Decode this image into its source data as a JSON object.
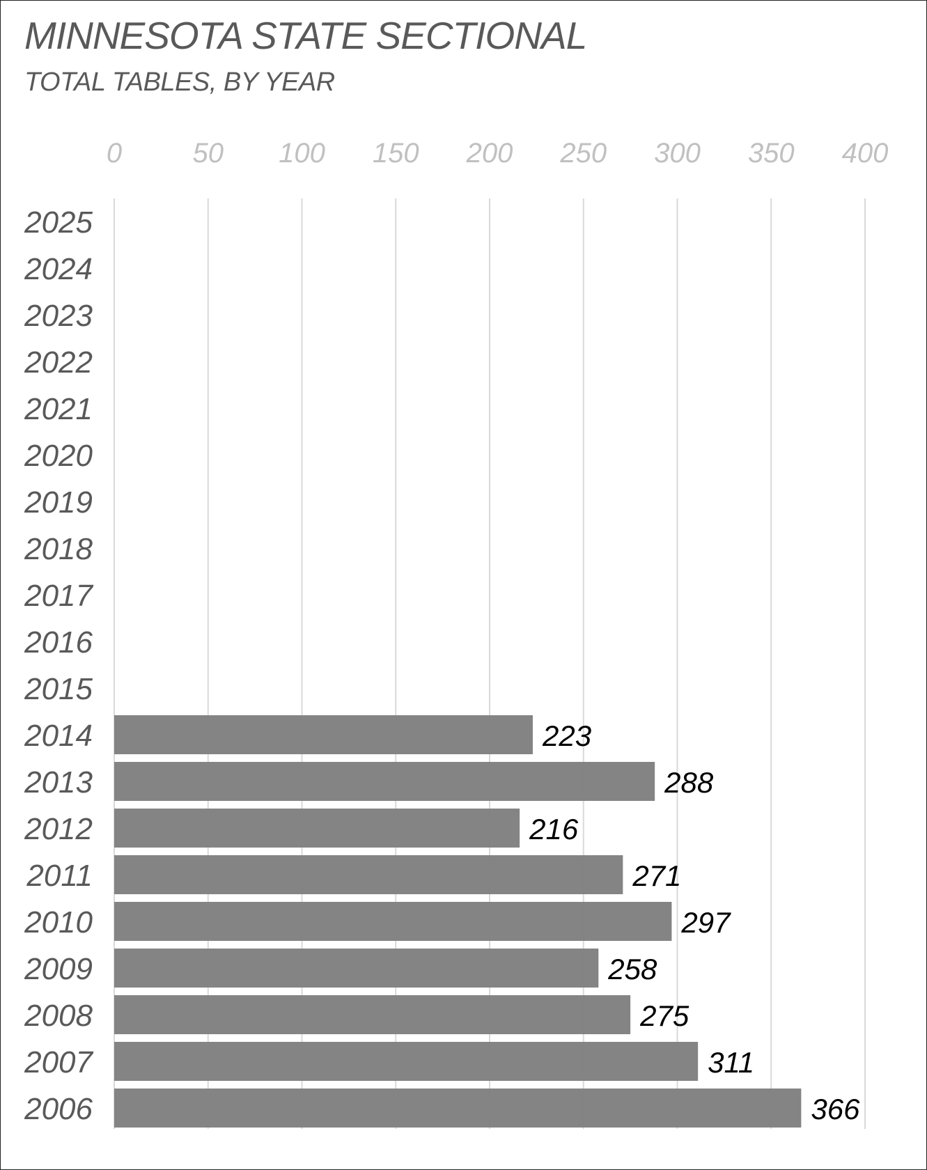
{
  "chart_data": {
    "type": "bar",
    "orientation": "horizontal",
    "title": "MINNESOTA STATE SECTIONAL",
    "subtitle": "TOTAL TABLES, BY YEAR",
    "categories": [
      "2025",
      "2024",
      "2023",
      "2022",
      "2021",
      "2020",
      "2019",
      "2018",
      "2017",
      "2016",
      "2015",
      "2014",
      "2013",
      "2012",
      "2011",
      "2010",
      "2009",
      "2008",
      "2007",
      "2006"
    ],
    "values": [
      null,
      null,
      null,
      null,
      null,
      null,
      null,
      null,
      null,
      null,
      null,
      223,
      288,
      216,
      271,
      297,
      258,
      275,
      311,
      366
    ],
    "xlim": [
      0,
      400
    ],
    "xticks": [
      0,
      50,
      100,
      150,
      200,
      250,
      300,
      350,
      400
    ],
    "tick_position": "top",
    "grid": true,
    "data_labels": true,
    "bar_color": "#808080",
    "gridline_color": "#d9d9d9"
  }
}
